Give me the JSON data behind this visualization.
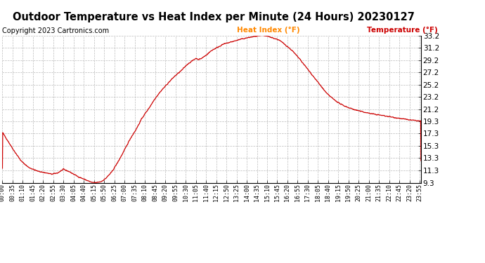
{
  "title": "Outdoor Temperature vs Heat Index per Minute (24 Hours) 20230127",
  "copyright": "Copyright 2023 Cartronics.com",
  "legend_heat": "Heat Index (°F)",
  "legend_temp": "Temperature (°F)",
  "line_color": "#cc0000",
  "heat_color": "#ff8800",
  "temp_color": "#cc0000",
  "bg_color": "#ffffff",
  "grid_color": "#bbbbbb",
  "yticks": [
    9.3,
    11.3,
    13.3,
    15.3,
    17.3,
    19.3,
    21.2,
    23.2,
    25.2,
    27.2,
    29.2,
    31.2,
    33.2
  ],
  "ymin": 9.3,
  "ymax": 33.2,
  "xlabel_fontsize": 6.0,
  "ylabel_fontsize": 7.5,
  "title_fontsize": 10.5,
  "copyright_fontsize": 7.0,
  "legend_fontsize": 7.5
}
